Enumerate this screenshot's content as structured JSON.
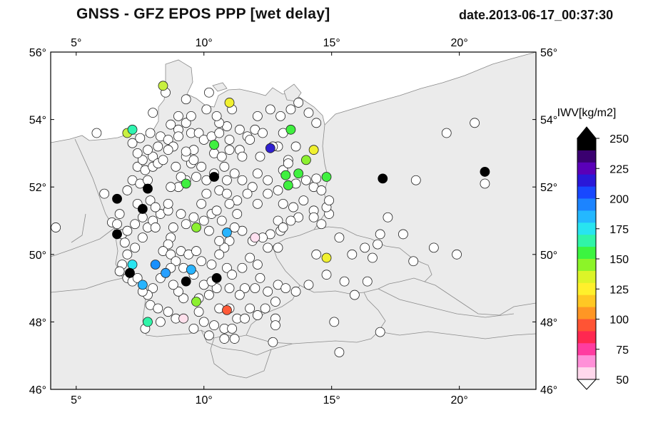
{
  "header": {
    "title": "GNSS  -  GFZ EPOS PPP [wet delay]",
    "date": "date.2013-06-17_00:37:30"
  },
  "map": {
    "lon_range": [
      4,
      23
    ],
    "lat_range": [
      46,
      56
    ],
    "lon_ticks": [
      {
        "v": 5,
        "label": "5°"
      },
      {
        "v": 10,
        "label": "10°"
      },
      {
        "v": 15,
        "label": "15°"
      },
      {
        "v": 20,
        "label": "20°"
      }
    ],
    "lat_ticks": [
      {
        "v": 46,
        "label": "46°"
      },
      {
        "v": 48,
        "label": "48°"
      },
      {
        "v": 50,
        "label": "50°"
      },
      {
        "v": 52,
        "label": "52°"
      },
      {
        "v": 54,
        "label": "54°"
      },
      {
        "v": 56,
        "label": "56°"
      }
    ],
    "land_color": "#ebebeb",
    "sea_color": "#ffffff",
    "border_color": "#8a8a8a"
  },
  "colorbar": {
    "label": "IWV[kg/m2]",
    "ticks": [
      "250",
      "225",
      "200",
      "175",
      "150",
      "125",
      "100",
      "75",
      "50"
    ],
    "colors": [
      "#000000",
      "#3a0070",
      "#5a00b8",
      "#2a18d8",
      "#1848ff",
      "#1c84ff",
      "#24b8ff",
      "#28e4f0",
      "#30f4a8",
      "#3cf440",
      "#8cf428",
      "#dcf428",
      "#fff02c",
      "#ffc824",
      "#ff9624",
      "#ff5434",
      "#ff2850",
      "#ff3ca0",
      "#ff90d8",
      "#ffd8ec"
    ]
  },
  "stations": {
    "white": [
      [
        4.2,
        50.8
      ],
      [
        5.8,
        53.6
      ],
      [
        6.1,
        51.8
      ],
      [
        6.4,
        50.95
      ],
      [
        6.6,
        50.9
      ],
      [
        6.7,
        51.2
      ],
      [
        6.8,
        50.6
      ],
      [
        6.9,
        50.35
      ],
      [
        6.8,
        49.7
      ],
      [
        6.7,
        49.5
      ],
      [
        7.0,
        49.3
      ],
      [
        7.2,
        49.2
      ],
      [
        7.4,
        49.3
      ],
      [
        7.0,
        50.0
      ],
      [
        7.3,
        50.2
      ],
      [
        7.6,
        50.5
      ],
      [
        7.0,
        50.7
      ],
      [
        7.3,
        50.9
      ],
      [
        7.6,
        51.1
      ],
      [
        7.8,
        50.8
      ],
      [
        8.0,
        51.0
      ],
      [
        8.1,
        50.8
      ],
      [
        8.3,
        51.2
      ],
      [
        8.6,
        51.3
      ],
      [
        7.4,
        51.5
      ],
      [
        7.9,
        51.6
      ],
      [
        8.1,
        51.4
      ],
      [
        8.6,
        51.5
      ],
      [
        7.0,
        51.9
      ],
      [
        7.2,
        52.2
      ],
      [
        7.5,
        52.1
      ],
      [
        7.8,
        52.2
      ],
      [
        7.4,
        52.6
      ],
      [
        7.7,
        52.5
      ],
      [
        8.0,
        52.6
      ],
      [
        7.6,
        52.8
      ],
      [
        8.0,
        52.9
      ],
      [
        8.2,
        52.7
      ],
      [
        8.4,
        52.8
      ],
      [
        7.4,
        53.0
      ],
      [
        7.2,
        53.3
      ],
      [
        7.8,
        53.1
      ],
      [
        8.2,
        53.2
      ],
      [
        7.5,
        53.45
      ],
      [
        7.9,
        53.6
      ],
      [
        8.3,
        53.5
      ],
      [
        8.6,
        53.4
      ],
      [
        8.7,
        53.85
      ],
      [
        9.0,
        53.7
      ],
      [
        9.3,
        53.9
      ],
      [
        9.0,
        54.1
      ],
      [
        9.5,
        53.6
      ],
      [
        9.8,
        53.6
      ],
      [
        10.0,
        53.4
      ],
      [
        10.3,
        53.5
      ],
      [
        10.6,
        53.6
      ],
      [
        10.9,
        53.8
      ],
      [
        11.0,
        53.4
      ],
      [
        10.6,
        53.9
      ],
      [
        10.5,
        54.1
      ],
      [
        10.1,
        54.3
      ],
      [
        9.5,
        54.1
      ],
      [
        9.3,
        54.6
      ],
      [
        10.2,
        54.8
      ],
      [
        8.0,
        54.2
      ],
      [
        8.5,
        54.8
      ],
      [
        11.1,
        54.3
      ],
      [
        11.4,
        53.7
      ],
      [
        11.7,
        53.5
      ],
      [
        12.0,
        53.7
      ],
      [
        12.3,
        53.6
      ],
      [
        12.1,
        54.1
      ],
      [
        12.6,
        54.3
      ],
      [
        13.0,
        54.1
      ],
      [
        13.4,
        54.3
      ],
      [
        13.7,
        54.5
      ],
      [
        14.1,
        54.2
      ],
      [
        14.4,
        53.9
      ],
      [
        13.1,
        53.6
      ],
      [
        12.9,
        53.2
      ],
      [
        12.7,
        53.2
      ],
      [
        11.8,
        53.4
      ],
      [
        11.4,
        53.1
      ],
      [
        11.0,
        53.1
      ],
      [
        10.4,
        53.0
      ],
      [
        10.7,
        52.9
      ],
      [
        11.5,
        52.9
      ],
      [
        12.2,
        52.9
      ],
      [
        13.6,
        53.2
      ],
      [
        13.3,
        52.8
      ],
      [
        13.1,
        52.5
      ],
      [
        13.6,
        52.1
      ],
      [
        13.3,
        52.7
      ],
      [
        14.0,
        52.2
      ],
      [
        14.3,
        52.0
      ],
      [
        14.4,
        52.25
      ],
      [
        14.6,
        51.9
      ],
      [
        12.1,
        52.4
      ],
      [
        12.5,
        52.2
      ],
      [
        11.9,
        52.0
      ],
      [
        11.5,
        52.2
      ],
      [
        11.2,
        52.4
      ],
      [
        10.9,
        52.2
      ],
      [
        10.8,
        52.6
      ],
      [
        10.4,
        52.4
      ],
      [
        10.1,
        52.2
      ],
      [
        9.7,
        52.3
      ],
      [
        9.5,
        52.7
      ],
      [
        9.3,
        52.2
      ],
      [
        9.1,
        52.3
      ],
      [
        9.0,
        52.0
      ],
      [
        8.7,
        52.0
      ],
      [
        8.9,
        52.6
      ],
      [
        9.3,
        52.9
      ],
      [
        9.6,
        52.8
      ],
      [
        9.6,
        53.1
      ],
      [
        9.3,
        53.05
      ],
      [
        8.8,
        53.2
      ],
      [
        8.6,
        53.1
      ],
      [
        9.0,
        53.5
      ],
      [
        9.9,
        52.6
      ],
      [
        10.1,
        51.8
      ],
      [
        10.6,
        51.9
      ],
      [
        10.9,
        51.8
      ],
      [
        11.3,
        51.6
      ],
      [
        11.7,
        51.8
      ],
      [
        12.1,
        51.5
      ],
      [
        12.5,
        51.8
      ],
      [
        12.9,
        51.9
      ],
      [
        13.1,
        51.5
      ],
      [
        13.5,
        51.4
      ],
      [
        13.9,
        51.6
      ],
      [
        14.3,
        51.3
      ],
      [
        14.9,
        51.2
      ],
      [
        14.8,
        51.4
      ],
      [
        14.9,
        51.6
      ],
      [
        14.3,
        51.1
      ],
      [
        13.7,
        51.1
      ],
      [
        13.4,
        51.0
      ],
      [
        12.9,
        51.0
      ],
      [
        13.0,
        50.7
      ],
      [
        12.6,
        50.6
      ],
      [
        12.3,
        50.5
      ],
      [
        11.9,
        50.4
      ],
      [
        11.5,
        50.7
      ],
      [
        11.2,
        50.8
      ],
      [
        11.0,
        50.4
      ],
      [
        10.8,
        50.2
      ],
      [
        10.6,
        50.4
      ],
      [
        10.2,
        50.7
      ],
      [
        10.0,
        51.0
      ],
      [
        10.3,
        51.2
      ],
      [
        10.7,
        51.0
      ],
      [
        11.3,
        51.2
      ],
      [
        11.0,
        51.5
      ],
      [
        10.5,
        51.3
      ],
      [
        9.9,
        51.5
      ],
      [
        9.6,
        51.1
      ],
      [
        9.3,
        50.9
      ],
      [
        9.1,
        51.2
      ],
      [
        8.8,
        50.8
      ],
      [
        8.7,
        50.5
      ],
      [
        8.6,
        50.3
      ],
      [
        8.4,
        50.1
      ],
      [
        8.7,
        50.0
      ],
      [
        9.1,
        50.1
      ],
      [
        9.4,
        50.0
      ],
      [
        9.7,
        50.1
      ],
      [
        9.9,
        49.8
      ],
      [
        10.3,
        49.7
      ],
      [
        10.6,
        50.0
      ],
      [
        10.9,
        49.6
      ],
      [
        11.1,
        49.4
      ],
      [
        11.5,
        49.6
      ],
      [
        11.8,
        49.9
      ],
      [
        12.1,
        49.7
      ],
      [
        12.2,
        49.3
      ],
      [
        12.0,
        49.0
      ],
      [
        11.6,
        49.0
      ],
      [
        11.4,
        48.8
      ],
      [
        11.0,
        49.0
      ],
      [
        10.5,
        49.0
      ],
      [
        10.2,
        48.8
      ],
      [
        10.0,
        49.1
      ],
      [
        9.6,
        49.4
      ],
      [
        9.2,
        49.6
      ],
      [
        8.9,
        49.8
      ],
      [
        8.7,
        49.6
      ],
      [
        8.3,
        49.3
      ],
      [
        8.0,
        49.0
      ],
      [
        7.8,
        48.8
      ],
      [
        7.6,
        48.9
      ],
      [
        7.9,
        48.5
      ],
      [
        8.2,
        48.4
      ],
      [
        8.6,
        48.3
      ],
      [
        8.9,
        48.1
      ],
      [
        9.2,
        48.7
      ],
      [
        9.0,
        48.9
      ],
      [
        8.8,
        49.1
      ],
      [
        9.8,
        48.3
      ],
      [
        10.0,
        48.0
      ],
      [
        10.4,
        47.9
      ],
      [
        10.8,
        47.8
      ],
      [
        11.1,
        47.8
      ],
      [
        11.3,
        48.1
      ],
      [
        11.6,
        48.1
      ],
      [
        11.8,
        48.4
      ],
      [
        12.1,
        48.2
      ],
      [
        12.4,
        48.4
      ],
      [
        12.8,
        48.6
      ],
      [
        12.5,
        48.9
      ],
      [
        12.9,
        49.1
      ],
      [
        13.2,
        49.0
      ],
      [
        13.6,
        48.9
      ],
      [
        14.1,
        49.1
      ],
      [
        12.8,
        48.1
      ],
      [
        12.8,
        47.9
      ],
      [
        12.7,
        47.4
      ],
      [
        11.2,
        47.5
      ],
      [
        10.8,
        47.5
      ],
      [
        10.2,
        47.6
      ],
      [
        9.6,
        47.8
      ],
      [
        9.8,
        48.7
      ],
      [
        10.6,
        48.4
      ],
      [
        11.0,
        48.4
      ],
      [
        8.3,
        48.0
      ],
      [
        7.7,
        47.8
      ],
      [
        10.3,
        49.2
      ],
      [
        12.5,
        50.2
      ],
      [
        12.9,
        50.2
      ],
      [
        13.1,
        50.8
      ],
      [
        14.4,
        50.0
      ],
      [
        15.3,
        50.5
      ],
      [
        15.8,
        50.0
      ],
      [
        16.3,
        50.2
      ],
      [
        16.6,
        49.9
      ],
      [
        16.8,
        50.3
      ],
      [
        16.9,
        50.6
      ],
      [
        17.2,
        51.1
      ],
      [
        17.8,
        50.6
      ],
      [
        18.2,
        49.8
      ],
      [
        19.0,
        50.2
      ],
      [
        19.9,
        50.0
      ],
      [
        18.3,
        52.2
      ],
      [
        19.5,
        53.6
      ],
      [
        20.6,
        53.9
      ],
      [
        21.0,
        52.1
      ],
      [
        15.5,
        49.2
      ],
      [
        15.9,
        48.8
      ],
      [
        16.4,
        49.2
      ],
      [
        16.9,
        47.7
      ],
      [
        15.1,
        48.0
      ],
      [
        15.3,
        47.1
      ],
      [
        14.8,
        49.4
      ],
      [
        14.6,
        50.9
      ]
    ],
    "colored": [
      {
        "lon": 8.4,
        "lat": 55.0,
        "color": "#c8f040"
      },
      {
        "lon": 11.0,
        "lat": 54.5,
        "color": "#f0f030"
      },
      {
        "lon": 7.0,
        "lat": 53.6,
        "color": "#c8f040"
      },
      {
        "lon": 7.2,
        "lat": 53.7,
        "color": "#30f4b0"
      },
      {
        "lon": 10.4,
        "lat": 53.25,
        "color": "#40f040"
      },
      {
        "lon": 12.6,
        "lat": 53.15,
        "color": "#3020d0"
      },
      {
        "lon": 13.4,
        "lat": 53.7,
        "color": "#40f040"
      },
      {
        "lon": 14.3,
        "lat": 53.1,
        "color": "#f0f030"
      },
      {
        "lon": 14.0,
        "lat": 52.8,
        "color": "#8cf030"
      },
      {
        "lon": 13.2,
        "lat": 52.35,
        "color": "#40f040"
      },
      {
        "lon": 13.7,
        "lat": 52.4,
        "color": "#40f040"
      },
      {
        "lon": 13.3,
        "lat": 52.05,
        "color": "#40f040"
      },
      {
        "lon": 14.8,
        "lat": 52.3,
        "color": "#40f040"
      },
      {
        "lon": 9.3,
        "lat": 52.1,
        "color": "#40f040"
      },
      {
        "lon": 9.7,
        "lat": 50.8,
        "color": "#8cf030"
      },
      {
        "lon": 10.9,
        "lat": 50.65,
        "color": "#28b4ff"
      },
      {
        "lon": 12.0,
        "lat": 50.5,
        "color": "#ffe0f0"
      },
      {
        "lon": 14.8,
        "lat": 49.9,
        "color": "#f0f030"
      },
      {
        "lon": 7.2,
        "lat": 49.7,
        "color": "#28e4f0"
      },
      {
        "lon": 8.1,
        "lat": 49.7,
        "color": "#1890ff"
      },
      {
        "lon": 8.5,
        "lat": 49.45,
        "color": "#28a0ff"
      },
      {
        "lon": 7.6,
        "lat": 49.1,
        "color": "#28b4ff"
      },
      {
        "lon": 9.5,
        "lat": 49.55,
        "color": "#28b4ff"
      },
      {
        "lon": 9.7,
        "lat": 48.6,
        "color": "#8cf030"
      },
      {
        "lon": 7.8,
        "lat": 48.0,
        "color": "#30f4a8"
      },
      {
        "lon": 9.2,
        "lat": 48.1,
        "color": "#ffe0ec"
      },
      {
        "lon": 10.9,
        "lat": 48.35,
        "color": "#ff5a38"
      }
    ],
    "black": [
      [
        6.6,
        51.65
      ],
      [
        7.8,
        51.95
      ],
      [
        7.6,
        51.35
      ],
      [
        6.6,
        50.6
      ],
      [
        7.1,
        49.45
      ],
      [
        9.3,
        49.2
      ],
      [
        10.5,
        49.3
      ],
      [
        10.4,
        52.3
      ],
      [
        17.0,
        52.25
      ],
      [
        21.0,
        52.45
      ]
    ]
  }
}
